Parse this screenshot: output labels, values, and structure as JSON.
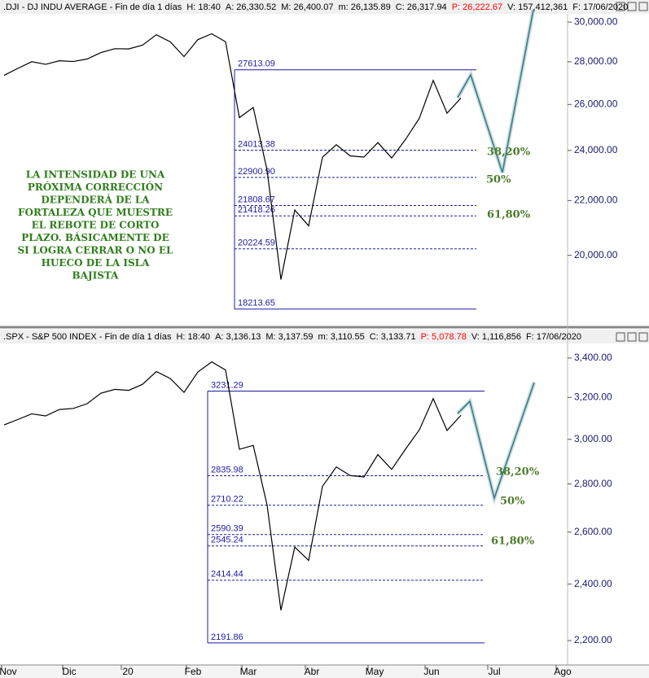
{
  "chart_data": [
    {
      "type": "line",
      "title": ".DJI - DJ INDU AVERAGE - Fin de día 1 días",
      "stats": [
        {
          "text": "H: 18:40",
          "color": "#000000"
        },
        {
          "text": "A: 26,330.52",
          "color": "#000000"
        },
        {
          "text": "M: 26,400.07",
          "color": "#000000"
        },
        {
          "text": "m: 26,135.89",
          "color": "#000000"
        },
        {
          "text": "C: 26,317.94",
          "color": "#000000"
        },
        {
          "text": "P: 26,222.67",
          "color": "#ff0000"
        },
        {
          "text": "V: 157,412,361",
          "color": "#000000"
        },
        {
          "text": "F: 17/06/2020",
          "color": "#000000"
        }
      ],
      "log_scale": true,
      "ylim": [
        17700,
        30392
      ],
      "yticks": [
        {
          "value": 20000,
          "label": "20,000.00"
        },
        {
          "value": 22000,
          "label": "22,000.00"
        },
        {
          "value": 24000,
          "label": "24,000.00"
        },
        {
          "value": 26000,
          "label": "26,000.00"
        },
        {
          "value": 28000,
          "label": "28,000.00"
        },
        {
          "value": 30000,
          "label": "30,000.00"
        }
      ],
      "series": [
        {
          "color": "#000000",
          "values": [
            27347,
            27681,
            28005,
            27876,
            28051,
            28015,
            28135,
            28455,
            28645,
            28634,
            28824,
            29348,
            28990,
            28256,
            29102,
            29398,
            28992,
            25409,
            25864,
            23186,
            19174,
            21637,
            21053,
            23719,
            24242,
            23775,
            23724,
            24331,
            23685,
            24465,
            25383,
            27111,
            25606,
            26290
          ]
        }
      ],
      "levels": [
        27613.09,
        24013.38,
        {
          "value": 22900.9,
          "label": "22900.90"
        },
        21808.67,
        21418.26,
        20224.59,
        18213.65
      ],
      "level_color": "#1c1ca0",
      "annotations": [
        "38,20%",
        "50%",
        "61,80%"
      ],
      "note": [
        "LA INTENSIDAD DE UNA",
        "PRÓXIMA CORRECCIÓN",
        "DEPENDERÁ DE LA",
        "FORTALEZA QUE MUESTRE",
        "EL REBOTE DE CORTO",
        "PLAZO. BÁSICAMENTE DE",
        "SI LOGRA CERRAR O NO EL",
        "HUECO DE LA ISLA",
        "BAJISTA"
      ]
    },
    {
      "type": "line",
      "title": ".SPX - S&P 500 INDEX - Fin de día 1 días",
      "stats": [
        {
          "text": "H: 18:40",
          "color": "#000000"
        },
        {
          "text": "A: 3,136.13",
          "color": "#000000"
        },
        {
          "text": "M: 3,137.59",
          "color": "#000000"
        },
        {
          "text": "m: 3,110.55",
          "color": "#000000"
        },
        {
          "text": "C: 3,133.71",
          "color": "#000000"
        },
        {
          "text": "P: 5,078.78",
          "color": "#ff0000"
        },
        {
          "text": "V: 1,116,856",
          "color": "#000000"
        },
        {
          "text": "F: 17/06/2020",
          "color": "#000000"
        }
      ],
      "log_scale": true,
      "ylim": [
        2124,
        3473
      ],
      "yticks": [
        {
          "value": 2200,
          "label": "2,200.00"
        },
        {
          "value": 2400,
          "label": "2,400.00"
        },
        {
          "value": 2600,
          "label": "2,600.00"
        },
        {
          "value": 2800,
          "label": "2,800.00"
        },
        {
          "value": 3000,
          "label": "3,000.00"
        },
        {
          "value": 3200,
          "label": "3,200.00"
        },
        {
          "value": 3400,
          "label": "3,400.00"
        }
      ],
      "series": [
        {
          "color": "#000000",
          "values": [
            3067,
            3093,
            3120,
            3110,
            3141,
            3146,
            3169,
            3221,
            3240,
            3235,
            3265,
            3330,
            3295,
            3225,
            3328,
            3380,
            3338,
            2954,
            2972,
            2711,
            2305,
            2541,
            2489,
            2790,
            2875,
            2837,
            2831,
            2930,
            2864,
            2955,
            3044,
            3194,
            3041,
            3113
          ]
        }
      ],
      "levels": [
        3231.29,
        2835.98,
        2710.22,
        2590.39,
        2545.24,
        2414.44,
        2191.86
      ],
      "level_color": "#1c1ca0",
      "annotations": [
        "38,20%",
        "50%",
        "61,80%"
      ]
    }
  ],
  "x_axis_labels": [
    "Nov",
    "Dic",
    "20",
    "Feb",
    "Mar",
    "Abr",
    "May",
    "Jun",
    "Jul",
    "Ago"
  ]
}
